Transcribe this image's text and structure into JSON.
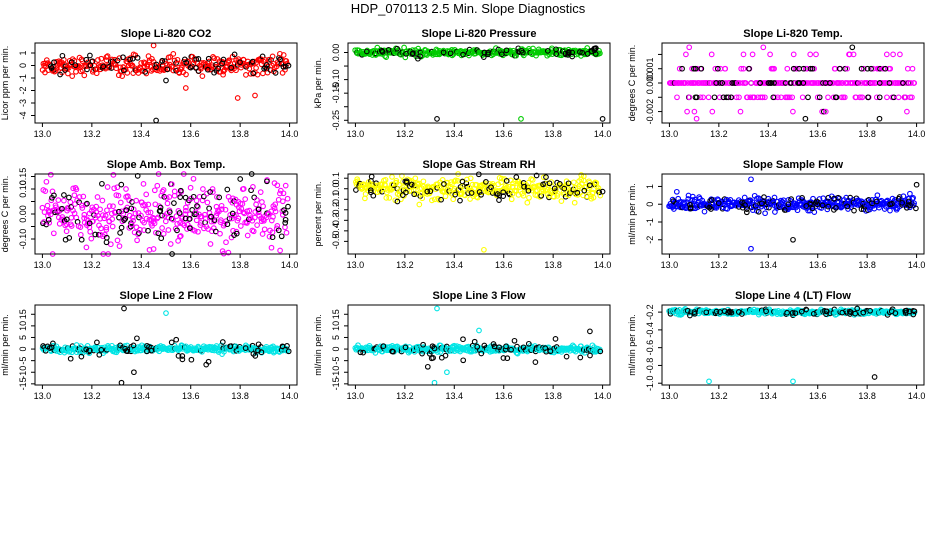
{
  "title": "HDP_070113  2.5 Min. Slope Diagnostics",
  "chart_data": [
    {
      "type": "scatter",
      "title": "Slope Li-820 CO2",
      "ylabel": "Licor ppm per min.",
      "color": "#ff0000",
      "xlim": [
        12.97,
        14.03
      ],
      "ylim": [
        -4.6,
        1.8
      ],
      "xticks": [
        13.0,
        13.2,
        13.4,
        13.6,
        13.8,
        14.0
      ],
      "xtick_labels": [
        "13.0",
        "13.2",
        "13.4",
        "13.6",
        "13.8",
        "14.0"
      ],
      "yticks": [
        -4,
        -3,
        -2,
        -1,
        0,
        1
      ],
      "ytick_labels": [
        "-4",
        "-3",
        "-2",
        "-1",
        "0",
        "1"
      ],
      "center": 0.0,
      "spread": 0.35,
      "n": 320,
      "outliers": [
        [
          13.45,
          1.6
        ],
        [
          13.46,
          -4.4
        ],
        [
          13.58,
          -1.8
        ],
        [
          13.79,
          -2.6
        ],
        [
          13.86,
          -2.4
        ],
        [
          13.5,
          -1.2
        ]
      ]
    },
    {
      "type": "scatter",
      "title": "Slope Li-820 Pressure",
      "ylabel": "kPa per min.",
      "color": "#00cc00",
      "xlim": [
        12.97,
        14.03
      ],
      "ylim": [
        -0.26,
        0.035
      ],
      "xticks": [
        13.0,
        13.2,
        13.4,
        13.6,
        13.8,
        14.0
      ],
      "xtick_labels": [
        "13.0",
        "13.2",
        "13.4",
        "13.6",
        "13.8",
        "14.0"
      ],
      "yticks": [
        -0.25,
        -0.2,
        -0.15,
        -0.1,
        -0.05,
        0.0
      ],
      "ytick_labels": [
        "-0.25",
        "",
        "-0.15",
        "-0.10",
        "",
        "0.00"
      ],
      "center": 0.0,
      "spread": 0.006,
      "n": 320,
      "outliers": [
        [
          13.33,
          -0.245
        ],
        [
          13.67,
          -0.245
        ],
        [
          14.0,
          -0.245
        ]
      ]
    },
    {
      "type": "scatter",
      "title": "Slope Li-820 Temp.",
      "ylabel": "degrees C per min.",
      "color": "#ff00ff",
      "xlim": [
        12.97,
        14.03
      ],
      "ylim": [
        -0.0028,
        0.0028
      ],
      "xticks": [
        13.0,
        13.2,
        13.4,
        13.6,
        13.8,
        14.0
      ],
      "xtick_labels": [
        "13.0",
        "13.2",
        "13.4",
        "13.6",
        "13.8",
        "14.0"
      ],
      "yticks": [
        -0.002,
        -0.001,
        0.0,
        0.001,
        0.002
      ],
      "ytick_labels": [
        "-0.002",
        "",
        "0.000",
        "0.001",
        ""
      ],
      "levels": [
        0.0,
        0.001,
        -0.001,
        0.002,
        -0.002
      ],
      "n": 320,
      "outliers": [
        [
          13.11,
          -0.0025
        ],
        [
          13.38,
          0.0025
        ],
        [
          13.08,
          0.0025
        ],
        [
          13.55,
          -0.0025
        ],
        [
          13.85,
          -0.0025
        ],
        [
          13.74,
          0.0025
        ]
      ]
    },
    {
      "type": "scatter",
      "title": "Slope Amb. Box Temp.",
      "ylabel": "degrees C per min.",
      "color": "#ff00ff",
      "xlim": [
        12.97,
        14.03
      ],
      "ylim": [
        -0.16,
        0.16
      ],
      "xticks": [
        13.0,
        13.2,
        13.4,
        13.6,
        13.8,
        14.0
      ],
      "xtick_labels": [
        "13.0",
        "13.2",
        "13.4",
        "13.6",
        "13.8",
        "14.0"
      ],
      "yticks": [
        -0.1,
        -0.05,
        0.0,
        0.05,
        0.1,
        0.15
      ],
      "ytick_labels": [
        "-0.10",
        "",
        "0.00",
        "",
        "0.10",
        "0.15"
      ],
      "center": 0.0,
      "spread": 0.06,
      "n": 420,
      "outliers": [
        [
          13.8,
          0.14
        ],
        [
          13.45,
          -0.14
        ],
        [
          13.68,
          -0.12
        ]
      ]
    },
    {
      "type": "scatter",
      "title": "Slope Gas Stream RH",
      "ylabel": "percent per min.",
      "color": "#ffff00",
      "xlim": [
        12.97,
        14.03
      ],
      "ylim": [
        -0.62,
        0.14
      ],
      "xticks": [
        13.0,
        13.2,
        13.4,
        13.6,
        13.8,
        14.0
      ],
      "xtick_labels": [
        "13.0",
        "13.2",
        "13.4",
        "13.6",
        "13.8",
        "14.0"
      ],
      "yticks": [
        -0.5,
        -0.4,
        -0.3,
        -0.2,
        -0.1,
        0.0,
        0.1
      ],
      "ytick_labels": [
        "-0.5",
        "-0.4",
        "-0.3",
        "-0.2",
        "-0.1",
        "0.0",
        "0.1"
      ],
      "center": 0.0,
      "spread": 0.05,
      "n": 380,
      "outliers": [
        [
          13.52,
          -0.58
        ]
      ]
    },
    {
      "type": "scatter",
      "title": "Slope Sample Flow",
      "ylabel": "ml/min per min.",
      "color": "#0000ff",
      "xlim": [
        12.97,
        14.03
      ],
      "ylim": [
        -2.8,
        1.7
      ],
      "xticks": [
        13.0,
        13.2,
        13.4,
        13.6,
        13.8,
        14.0
      ],
      "xtick_labels": [
        "13.0",
        "13.2",
        "13.4",
        "13.6",
        "13.8",
        "14.0"
      ],
      "yticks": [
        -2,
        -1,
        0,
        1
      ],
      "ytick_labels": [
        "-2",
        "-1",
        "0",
        "1"
      ],
      "center": 0.0,
      "spread": 0.18,
      "n": 380,
      "outliers": [
        [
          13.5,
          -2.0
        ],
        [
          13.33,
          -2.5
        ],
        [
          13.33,
          1.4
        ],
        [
          14.0,
          1.1
        ],
        [
          13.03,
          0.7
        ]
      ]
    },
    {
      "type": "scatter",
      "title": "Slope Line 2 Flow",
      "ylabel": "ml/min per min.",
      "color": "#00e5e5",
      "xlim": [
        12.97,
        14.03
      ],
      "ylim": [
        -15.5,
        19
      ],
      "xticks": [
        13.0,
        13.2,
        13.4,
        13.6,
        13.8,
        14.0
      ],
      "xtick_labels": [
        "13.0",
        "13.2",
        "13.4",
        "13.6",
        "13.8",
        "14.0"
      ],
      "yticks": [
        -15,
        -10,
        -5,
        0,
        5,
        10,
        15
      ],
      "ytick_labels": [
        "-15",
        "-10",
        "-5",
        "0",
        "5",
        "10",
        "15"
      ],
      "center": 0.0,
      "spread": 0.7,
      "n": 360,
      "outliers": [
        [
          13.33,
          17.5
        ],
        [
          13.32,
          -14.5
        ],
        [
          13.5,
          15.5
        ],
        [
          13.37,
          -10
        ]
      ]
    },
    {
      "type": "scatter",
      "title": "Slope Line 3 Flow",
      "ylabel": "ml/min per min.",
      "color": "#00e5e5",
      "xlim": [
        12.97,
        14.03
      ],
      "ylim": [
        -15.5,
        19
      ],
      "xticks": [
        13.0,
        13.2,
        13.4,
        13.6,
        13.8,
        14.0
      ],
      "xtick_labels": [
        "13.0",
        "13.2",
        "13.4",
        "13.6",
        "13.8",
        "14.0"
      ],
      "yticks": [
        -15,
        -10,
        -5,
        0,
        5,
        10,
        15
      ],
      "ytick_labels": [
        "-15",
        "-10",
        "-5",
        "0",
        "5",
        "10",
        "15"
      ],
      "center": 0.0,
      "spread": 0.7,
      "n": 360,
      "outliers": [
        [
          13.33,
          17.5
        ],
        [
          13.32,
          -14.5
        ],
        [
          13.5,
          8
        ],
        [
          13.37,
          -10
        ]
      ]
    },
    {
      "type": "scatter",
      "title": "Slope Line 4 (LT) Flow",
      "ylabel": "ml/min per min.",
      "color": "#00e5e5",
      "xlim": [
        12.97,
        14.03
      ],
      "ylim": [
        -1.02,
        -0.12
      ],
      "xticks": [
        13.0,
        13.2,
        13.4,
        13.6,
        13.8,
        14.0
      ],
      "xtick_labels": [
        "13.0",
        "13.2",
        "13.4",
        "13.6",
        "13.8",
        "14.0"
      ],
      "yticks": [
        -1.0,
        -0.8,
        -0.6,
        -0.4,
        -0.2
      ],
      "ytick_labels": [
        "-1.0",
        "-0.8",
        "-0.6",
        "-0.4",
        "-0.2"
      ],
      "center": -0.2,
      "spread": 0.012,
      "n": 360,
      "outliers": [
        [
          13.16,
          -0.98
        ],
        [
          13.5,
          -0.98
        ],
        [
          13.83,
          -0.93
        ]
      ]
    }
  ]
}
